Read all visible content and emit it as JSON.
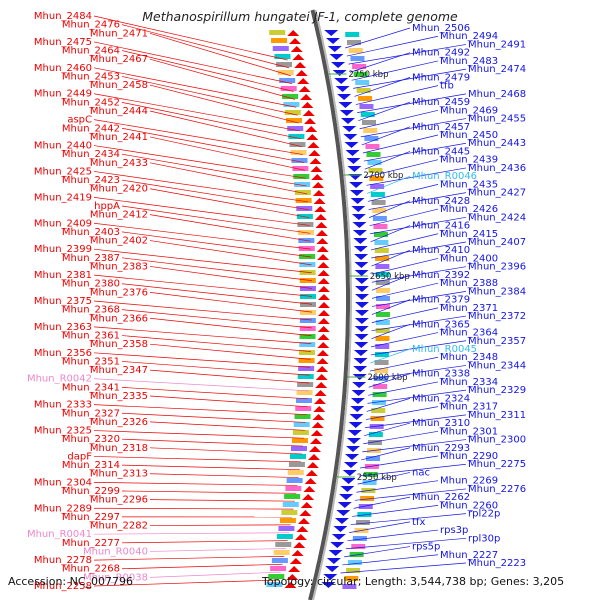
{
  "header": {
    "title": "Methanospirillum hungatei JF-1, complete genome"
  },
  "footer": {
    "accession": "Accession: NC_007796",
    "summary": "Topology: circular; Length: 3,544,738 bp; Genes: 3,205"
  },
  "colors": {
    "minus_strand": "#ee0000",
    "plus_strand": "#1414e6",
    "rna_minus": "#ee88cc",
    "rna_plus": "#33bbee",
    "backbone": "#888888"
  },
  "scale_labels": [
    "2750 kbp",
    "2700 kbp",
    "2650 kbp",
    "2600 kbp",
    "2550 kbp"
  ],
  "left_genes": [
    "Mhun_2484",
    "Mhun_2476",
    "Mhun_2471",
    "Mhun_2475",
    "Mhun_2464",
    "Mhun_2467",
    "Mhun_2460",
    "Mhun_2453",
    "Mhun_2458",
    "Mhun_2449",
    "Mhun_2452",
    "Mhun_2444",
    "aspC",
    "Mhun_2442",
    "Mhun_2441",
    "Mhun_2440",
    "Mhun_2434",
    "Mhun_2433",
    "Mhun_2425",
    "Mhun_2423",
    "Mhun_2420",
    "Mhun_2419",
    "hppA",
    "Mhun_2412",
    "Mhun_2409",
    "Mhun_2403",
    "Mhun_2402",
    "Mhun_2399",
    "Mhun_2387",
    "Mhun_2383",
    "Mhun_2381",
    "Mhun_2380",
    "Mhun_2376",
    "Mhun_2375",
    "Mhun_2368",
    "Mhun_2366",
    "Mhun_2363",
    "Mhun_2361",
    "Mhun_2358",
    "Mhun_2356",
    "Mhun_2351",
    "Mhun_2347",
    "Mhun_R0042",
    "Mhun_2341",
    "Mhun_2335",
    "Mhun_2333",
    "Mhun_2327",
    "Mhun_2326",
    "Mhun_2325",
    "Mhun_2320",
    "Mhun_2318",
    "dapF",
    "Mhun_2314",
    "Mhun_2313",
    "Mhun_2304",
    "Mhun_2299",
    "Mhun_2296",
    "Mhun_2289",
    "Mhun_2297",
    "Mhun_2282",
    "Mhun_R0041",
    "Mhun_2277",
    "Mhun_R0040",
    "Mhun_2278",
    "Mhun_2268",
    "Mhun_R0038",
    "Mhun_2258"
  ],
  "right_genes": [
    "Mhun_2506",
    "Mhun_2494",
    "Mhun_2491",
    "Mhun_2492",
    "Mhun_2483",
    "Mhun_2474",
    "Mhun_2479",
    "tfb",
    "Mhun_2468",
    "Mhun_2459",
    "Mhun_2469",
    "Mhun_2455",
    "Mhun_2457",
    "Mhun_2450",
    "Mhun_2443",
    "Mhun_2445",
    "Mhun_2439",
    "Mhun_2436",
    "Mhun_R0046",
    "Mhun_2435",
    "Mhun_2427",
    "Mhun_2428",
    "Mhun_2426",
    "Mhun_2424",
    "Mhun_2416",
    "Mhun_2415",
    "Mhun_2407",
    "Mhun_2410",
    "Mhun_2400",
    "Mhun_2396",
    "Mhun_2392",
    "Mhun_2388",
    "Mhun_2384",
    "Mhun_2379",
    "Mhun_2371",
    "Mhun_2372",
    "Mhun_2365",
    "Mhun_2364",
    "Mhun_2357",
    "Mhun_R0045",
    "Mhun_2348",
    "Mhun_2344",
    "Mhun_2338",
    "Mhun_2334",
    "Mhun_2329",
    "Mhun_2324",
    "Mhun_2317",
    "Mhun_2311",
    "Mhun_2310",
    "Mhun_2301",
    "Mhun_2300",
    "Mhun_2293",
    "Mhun_2290",
    "Mhun_2275",
    "nac",
    "Mhun_2269",
    "Mhun_2276",
    "Mhun_2262",
    "Mhun_2260",
    "rpl22p",
    "tfx",
    "rps3p",
    "rpl30p",
    "rps5p",
    "Mhun_2227",
    "Mhun_2223"
  ]
}
